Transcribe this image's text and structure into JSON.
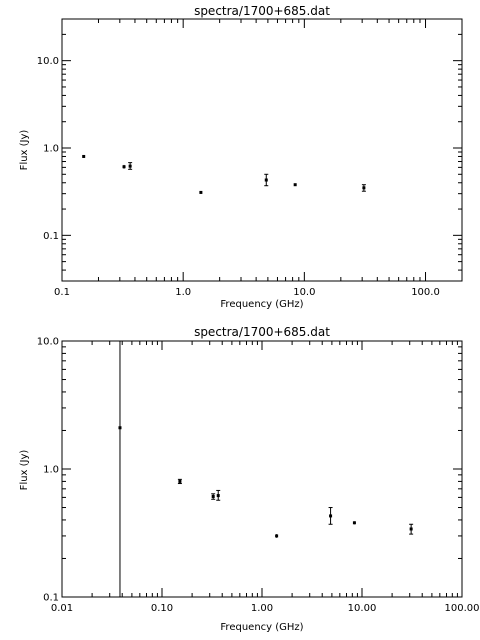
{
  "chart_data": [
    {
      "type": "scatter",
      "title": "spectra/1700+685.dat",
      "xlabel": "Frequency (GHz)",
      "ylabel": "Flux (Jy)",
      "xscale": "log",
      "yscale": "log",
      "xlim": [
        0.1,
        200
      ],
      "ylim": [
        0.03,
        30
      ],
      "xticks": [
        0.1,
        1,
        10,
        100
      ],
      "xtick_labels": [
        "0.1",
        "1.0",
        "10.0",
        "100.0"
      ],
      "yticks": [
        0.1,
        1,
        10
      ],
      "ytick_labels": [
        "0.1",
        "1.0",
        "10.0"
      ],
      "series": [
        {
          "points": [
            {
              "x": 0.151,
              "y": 0.8,
              "err_lo": 0.77,
              "err_hi": 0.83
            },
            {
              "x": 0.325,
              "y": 0.61,
              "err_lo": 0.58,
              "err_hi": 0.64
            },
            {
              "x": 0.365,
              "y": 0.62,
              "err_lo": 0.57,
              "err_hi": 0.68
            },
            {
              "x": 1.4,
              "y": 0.31,
              "err_lo": 0.3,
              "err_hi": 0.32
            },
            {
              "x": 4.85,
              "y": 0.43,
              "err_lo": 0.37,
              "err_hi": 0.5
            },
            {
              "x": 8.4,
              "y": 0.38,
              "err_lo": 0.37,
              "err_hi": 0.39
            },
            {
              "x": 31.0,
              "y": 0.35,
              "err_lo": 0.32,
              "err_hi": 0.38
            }
          ]
        }
      ]
    },
    {
      "type": "scatter",
      "title": "spectra/1700+685.dat",
      "xlabel": "Frequency (GHz)",
      "ylabel": "Flux (Jy)",
      "xscale": "log",
      "yscale": "log",
      "xlim": [
        0.01,
        100
      ],
      "ylim": [
        0.1,
        10
      ],
      "xticks": [
        0.01,
        0.1,
        1,
        10,
        100
      ],
      "xtick_labels": [
        "0.01",
        "0.10",
        "1.00",
        "10.00",
        "100.00"
      ],
      "yticks": [
        0.1,
        1,
        10
      ],
      "ytick_labels": [
        "0.1",
        "1.0",
        "10.0"
      ],
      "series": [
        {
          "points": [
            {
              "x": 0.038,
              "y": 2.1,
              "err_lo": 0.1,
              "err_hi": 10
            },
            {
              "x": 0.151,
              "y": 0.8,
              "err_lo": 0.77,
              "err_hi": 0.83
            },
            {
              "x": 0.325,
              "y": 0.61,
              "err_lo": 0.58,
              "err_hi": 0.64
            },
            {
              "x": 0.365,
              "y": 0.62,
              "err_lo": 0.57,
              "err_hi": 0.68
            },
            {
              "x": 1.4,
              "y": 0.3,
              "err_lo": 0.29,
              "err_hi": 0.31
            },
            {
              "x": 4.85,
              "y": 0.43,
              "err_lo": 0.37,
              "err_hi": 0.5
            },
            {
              "x": 8.4,
              "y": 0.38,
              "err_lo": 0.37,
              "err_hi": 0.39
            },
            {
              "x": 31.0,
              "y": 0.34,
              "err_lo": 0.31,
              "err_hi": 0.37
            }
          ]
        }
      ]
    }
  ]
}
